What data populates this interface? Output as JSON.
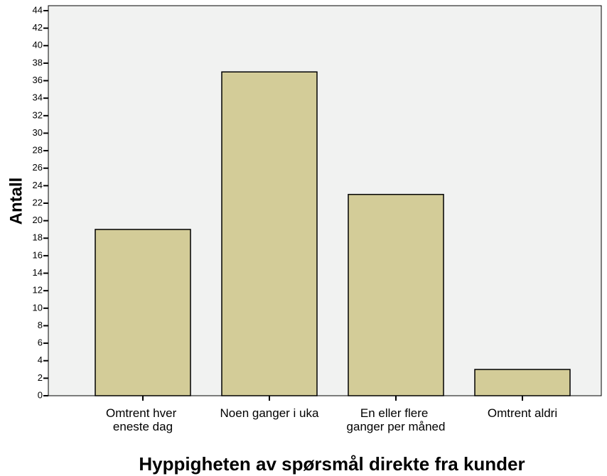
{
  "chart_data": {
    "type": "bar",
    "x_label": "Hyppigheten av spørsmål direkte fra kunder",
    "y_label": "Antall",
    "categories": [
      "Omtrent hver eneste dag",
      "Noen ganger i uka",
      "En eller flere ganger per måned",
      "Omtrent aldri"
    ],
    "values": [
      19,
      37,
      23,
      3
    ],
    "color": "#d3cc98",
    "ylim": [
      0,
      44
    ],
    "yticks": [
      0,
      2,
      4,
      6,
      8,
      10,
      12,
      14,
      16,
      18,
      20,
      22,
      24,
      26,
      28,
      30,
      32,
      34,
      36,
      38,
      40,
      42,
      44
    ]
  }
}
